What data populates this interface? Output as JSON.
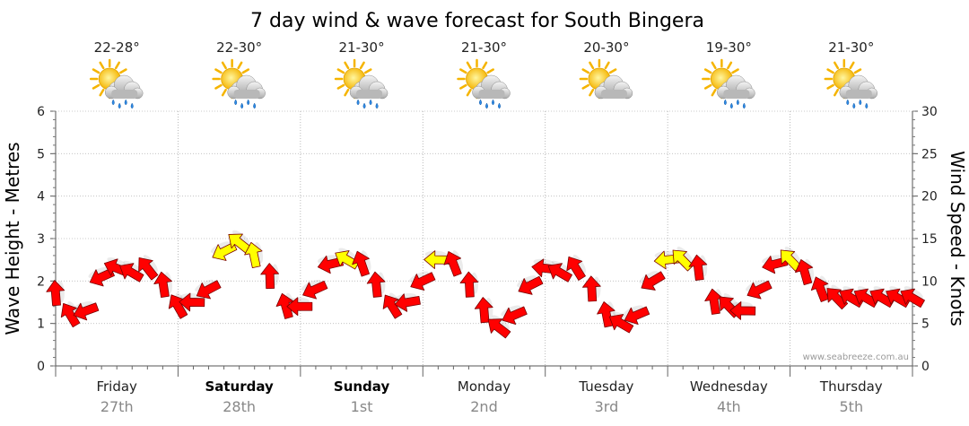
{
  "chart_data": {
    "type": "line",
    "title": "7 day wind & wave forecast for South Bingera",
    "ylabel_left": "Wave Height - Metres",
    "ylabel_right": "Wind Speed - Knots",
    "ylim_left": [
      0,
      6
    ],
    "ylim_right": [
      0,
      30
    ],
    "yticks_left": [
      "0",
      "1",
      "2",
      "3",
      "4",
      "5",
      "6"
    ],
    "yticks_right": [
      "0",
      "5",
      "10",
      "15",
      "20",
      "25",
      "30"
    ],
    "grid": true,
    "days": [
      {
        "name": "Friday",
        "date": "27th",
        "temp": "22-28°",
        "bold": false,
        "rain": true
      },
      {
        "name": "Saturday",
        "date": "28th",
        "temp": "22-30°",
        "bold": true,
        "rain": true
      },
      {
        "name": "Sunday",
        "date": "1st",
        "temp": "21-30°",
        "bold": true,
        "rain": true
      },
      {
        "name": "Monday",
        "date": "2nd",
        "temp": "21-30°",
        "bold": false,
        "rain": true
      },
      {
        "name": "Tuesday",
        "date": "3rd",
        "temp": "20-30°",
        "bold": false,
        "rain": false
      },
      {
        "name": "Wednesday",
        "date": "4th",
        "temp": "19-30°",
        "bold": false,
        "rain": true
      },
      {
        "name": "Thursday",
        "date": "5th",
        "temp": "21-30°",
        "bold": false,
        "rain": true
      }
    ],
    "wind_series": {
      "name": "Wind Speed",
      "x_days": [
        0.0,
        0.12,
        0.25,
        0.38,
        0.5,
        0.62,
        0.75,
        0.88,
        1.0,
        1.12,
        1.25,
        1.38,
        1.5,
        1.62,
        1.75,
        1.88,
        2.0,
        2.12,
        2.25,
        2.38,
        2.5,
        2.62,
        2.75,
        2.88,
        3.0,
        3.12,
        3.25,
        3.38,
        3.5,
        3.62,
        3.75,
        3.88,
        4.0,
        4.12,
        4.25,
        4.38,
        4.5,
        4.62,
        4.75,
        4.88,
        5.0,
        5.12,
        5.25,
        5.38,
        5.5,
        5.62,
        5.75,
        5.88,
        6.0,
        6.12,
        6.25,
        6.38,
        6.5,
        6.62,
        6.75,
        6.88,
        7.0
      ],
      "knots": [
        8.5,
        6.0,
        6.5,
        10.5,
        11.5,
        11.0,
        11.5,
        9.5,
        7.0,
        7.5,
        9.0,
        13.5,
        14.5,
        13.0,
        10.5,
        7.0,
        7.0,
        9.0,
        12.0,
        12.5,
        12.0,
        9.5,
        7.0,
        7.5,
        10.0,
        12.5,
        12.0,
        9.5,
        6.5,
        4.5,
        6.0,
        9.5,
        11.5,
        11.0,
        11.5,
        9.0,
        6.0,
        5.0,
        6.0,
        10.0,
        12.5,
        12.5,
        11.5,
        7.5,
        7.0,
        6.5,
        9.0,
        12.0,
        12.5,
        11.0,
        9.0,
        8.0,
        8.0,
        8.0,
        8.0,
        8.0,
        8.0
      ],
      "color_low": "#ff0000",
      "color_high": "#ffff00",
      "threshold_knots": 12.5
    },
    "credit": "www.seabreeze.com.au"
  }
}
